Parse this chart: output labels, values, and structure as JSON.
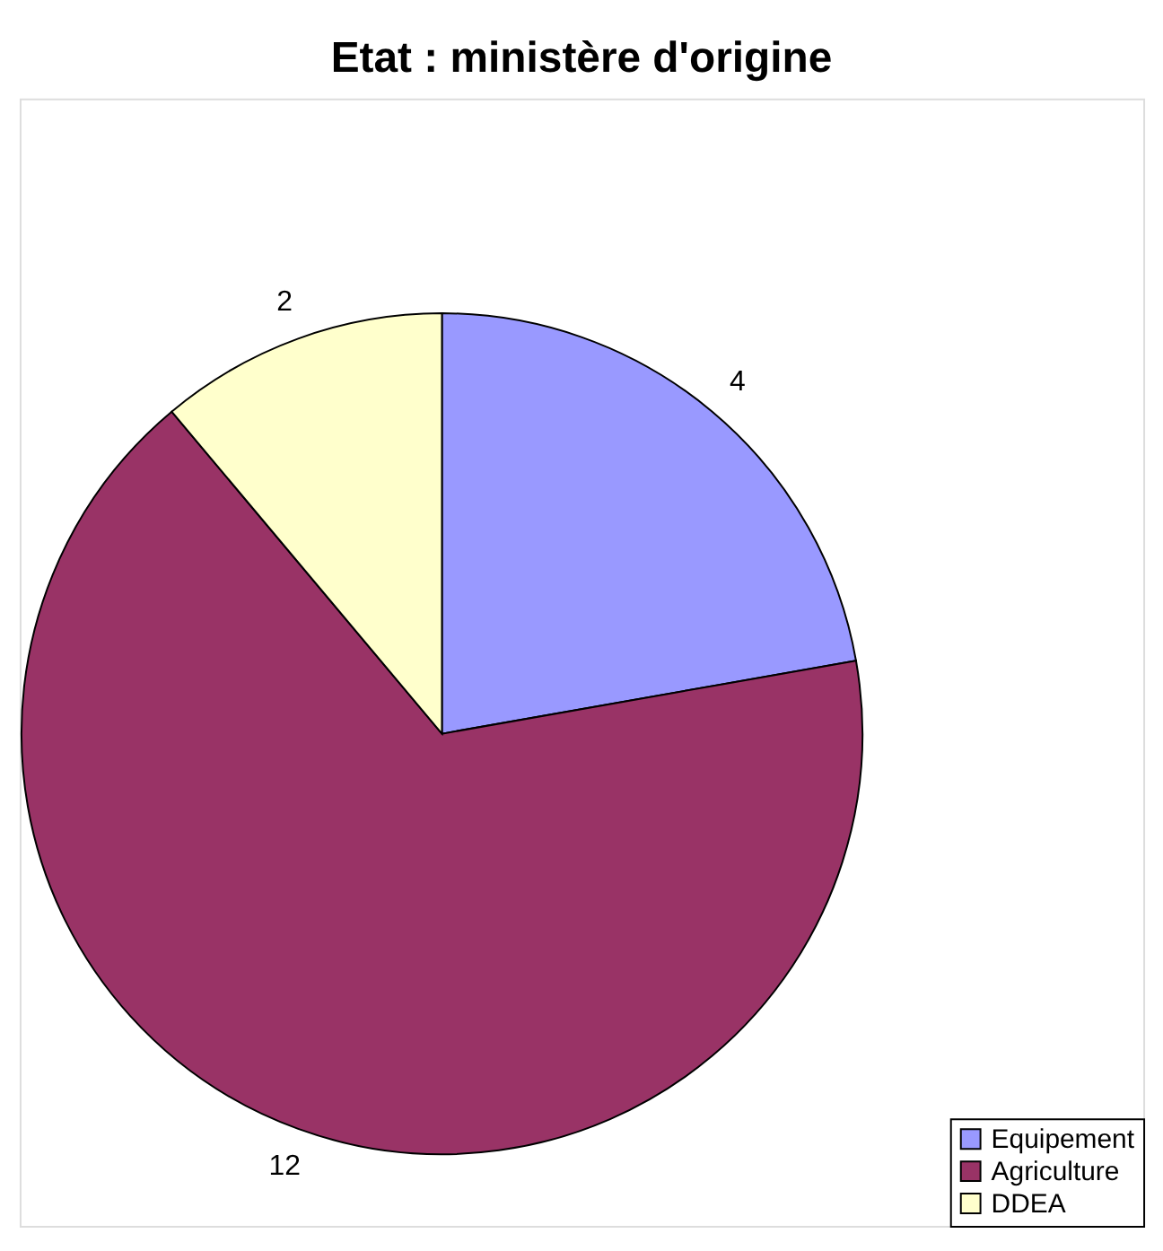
{
  "chart_data": {
    "type": "pie",
    "title": "Etat : ministère d'origine",
    "categories": [
      "Equipement",
      "Agriculture",
      "DDEA"
    ],
    "values": [
      4,
      12,
      2
    ],
    "colors": [
      "#9999ff",
      "#993366",
      "#ffffcc"
    ],
    "data_labels": true,
    "legend": "bottom right"
  }
}
